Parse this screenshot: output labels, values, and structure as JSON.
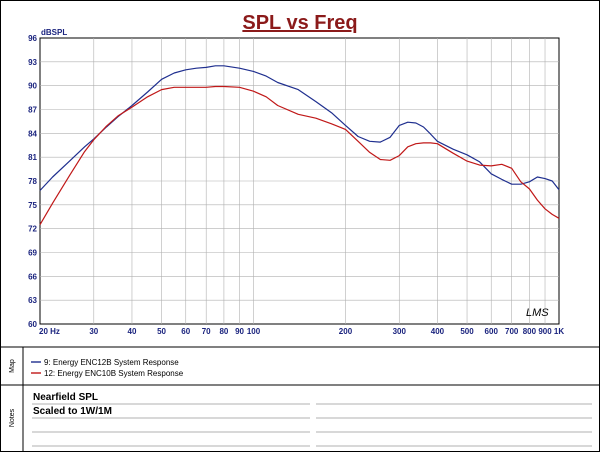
{
  "chart_data": {
    "type": "line",
    "title": "SPL vs Freq",
    "ylabel": "dBSPL",
    "xlabel": "",
    "xscale": "log",
    "xlim": [
      20,
      1000
    ],
    "ylim": [
      60,
      96
    ],
    "grid": true,
    "legend_position": "bottom-left",
    "y_ticks": [
      "96",
      "93",
      "90",
      "87",
      "84",
      "81",
      "78",
      "75",
      "72",
      "69",
      "66",
      "63",
      "60"
    ],
    "x_ticks": [
      {
        "v": 20,
        "label": "20 Hz"
      },
      {
        "v": 30,
        "label": "30"
      },
      {
        "v": 40,
        "label": "40"
      },
      {
        "v": 50,
        "label": "50"
      },
      {
        "v": 60,
        "label": "60"
      },
      {
        "v": 70,
        "label": "70"
      },
      {
        "v": 80,
        "label": "80"
      },
      {
        "v": 90,
        "label": "90"
      },
      {
        "v": 100,
        "label": "100"
      },
      {
        "v": 200,
        "label": "200"
      },
      {
        "v": 300,
        "label": "300"
      },
      {
        "v": 400,
        "label": "400"
      },
      {
        "v": 500,
        "label": "500"
      },
      {
        "v": 600,
        "label": "600"
      },
      {
        "v": 700,
        "label": "700"
      },
      {
        "v": 800,
        "label": "800"
      },
      {
        "v": 900,
        "label": "900"
      },
      {
        "v": 1000,
        "label": "1K"
      }
    ],
    "series": [
      {
        "name": "9: Energy ENC12B System Response",
        "color": "#1f2f8f",
        "x": [
          20,
          22,
          25,
          28,
          30,
          33,
          36,
          40,
          45,
          50,
          55,
          60,
          65,
          70,
          75,
          80,
          90,
          100,
          110,
          120,
          140,
          160,
          180,
          200,
          220,
          240,
          260,
          280,
          300,
          320,
          340,
          360,
          380,
          400,
          450,
          500,
          550,
          600,
          650,
          700,
          750,
          800,
          850,
          900,
          950,
          1000
        ],
        "y": [
          76.8,
          78.5,
          80.5,
          82.3,
          83.3,
          84.8,
          86.1,
          87.5,
          89.2,
          90.8,
          91.6,
          92.0,
          92.2,
          92.3,
          92.5,
          92.5,
          92.2,
          91.8,
          91.2,
          90.4,
          89.5,
          88.0,
          86.6,
          85.0,
          83.6,
          83.0,
          82.9,
          83.5,
          85.0,
          85.4,
          85.3,
          84.8,
          83.9,
          83.0,
          82.0,
          81.3,
          80.4,
          78.9,
          78.2,
          77.6,
          77.6,
          77.9,
          78.5,
          78.3,
          78.0,
          76.9
        ]
      },
      {
        "name": "12: Energy ENC10B System Response",
        "color": "#c01818",
        "x": [
          20,
          22,
          25,
          28,
          30,
          33,
          36,
          40,
          45,
          50,
          55,
          60,
          65,
          70,
          75,
          80,
          90,
          100,
          110,
          120,
          140,
          160,
          180,
          200,
          220,
          240,
          260,
          280,
          300,
          320,
          340,
          360,
          380,
          400,
          450,
          500,
          550,
          600,
          650,
          700,
          750,
          800,
          850,
          900,
          950,
          1000
        ],
        "y": [
          72.5,
          75.2,
          78.7,
          81.7,
          83.2,
          84.9,
          86.2,
          87.3,
          88.6,
          89.5,
          89.8,
          89.8,
          89.8,
          89.8,
          89.9,
          89.9,
          89.8,
          89.3,
          88.6,
          87.5,
          86.4,
          85.9,
          85.2,
          84.5,
          83.0,
          81.6,
          80.7,
          80.6,
          81.2,
          82.3,
          82.7,
          82.8,
          82.8,
          82.7,
          81.5,
          80.5,
          80.0,
          79.9,
          80.1,
          79.6,
          77.9,
          77.0,
          75.6,
          74.5,
          73.8,
          73.3
        ]
      }
    ]
  },
  "watermark": "LMS",
  "legend_side_label": "Map",
  "notes": {
    "side_label": "Notes",
    "lines": [
      "Nearfield SPL",
      "Scaled to 1W/1M"
    ]
  }
}
